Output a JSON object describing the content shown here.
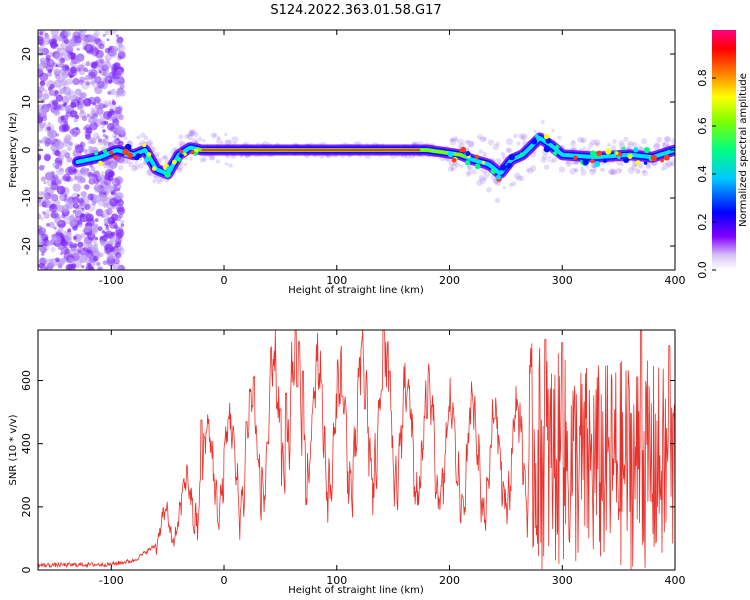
{
  "title": "S124.2022.363.01.58.G17",
  "chart_data": [
    {
      "type": "heatmap",
      "xlabel": "Height of straight line (km)",
      "ylabel": "Frequency (Hz)",
      "xlim": [
        -165,
        400
      ],
      "ylim": [
        -25,
        25
      ],
      "xticks": [
        -100,
        0,
        100,
        200,
        300,
        400
      ],
      "yticks": [
        -20,
        -10,
        0,
        10,
        20
      ],
      "track": [
        {
          "x": -130,
          "y": -2.5
        },
        {
          "x": -110,
          "y": -1.5
        },
        {
          "x": -95,
          "y": 0
        },
        {
          "x": -80,
          "y": -1
        },
        {
          "x": -70,
          "y": 0
        },
        {
          "x": -60,
          "y": -4
        },
        {
          "x": -50,
          "y": -5
        },
        {
          "x": -40,
          "y": -1
        },
        {
          "x": -30,
          "y": 0.5
        },
        {
          "x": -20,
          "y": 0
        },
        {
          "x": 0,
          "y": 0
        },
        {
          "x": 100,
          "y": 0
        },
        {
          "x": 180,
          "y": 0
        },
        {
          "x": 210,
          "y": -1
        },
        {
          "x": 220,
          "y": -2
        },
        {
          "x": 235,
          "y": -3
        },
        {
          "x": 245,
          "y": -5
        },
        {
          "x": 255,
          "y": -2
        },
        {
          "x": 265,
          "y": -1
        },
        {
          "x": 280,
          "y": 2.5
        },
        {
          "x": 290,
          "y": 1
        },
        {
          "x": 300,
          "y": -1
        },
        {
          "x": 330,
          "y": -1.5
        },
        {
          "x": 360,
          "y": -1
        },
        {
          "x": 380,
          "y": -1.5
        },
        {
          "x": 400,
          "y": 0
        }
      ],
      "colorbar": {
        "label": "Normalized spectral amplitude",
        "ticks": [
          "0.0",
          "0.2",
          "0.4",
          "0.6",
          "0.8"
        ],
        "tick_values": [
          0,
          0.2,
          0.4,
          0.6,
          0.8
        ],
        "range": [
          0,
          1
        ],
        "colors": [
          "#ffffff",
          "#c8a8f0",
          "#8000ff",
          "#0000ff",
          "#00ffff",
          "#00ff00",
          "#ffff00",
          "#ff8000",
          "#ff0000",
          "#ff0080"
        ]
      }
    },
    {
      "type": "line",
      "xlabel": "Height of straight line (km)",
      "ylabel": "SNR (10 * v/v)",
      "xlim": [
        -165,
        400
      ],
      "ylim": [
        0,
        760
      ],
      "xticks": [
        -100,
        0,
        100,
        200,
        300,
        400
      ],
      "yticks": [
        0,
        200,
        400,
        600
      ],
      "color": "#e8312a",
      "envelope": [
        {
          "x": -165,
          "y": 15
        },
        {
          "x": -100,
          "y": 18
        },
        {
          "x": -80,
          "y": 30
        },
        {
          "x": -60,
          "y": 80
        },
        {
          "x": -50,
          "y": 150
        },
        {
          "x": -40,
          "y": 180
        },
        {
          "x": -30,
          "y": 220
        },
        {
          "x": -20,
          "y": 300
        },
        {
          "x": -10,
          "y": 330
        },
        {
          "x": 0,
          "y": 330
        },
        {
          "x": 10,
          "y": 340
        },
        {
          "x": 20,
          "y": 360
        },
        {
          "x": 30,
          "y": 420
        },
        {
          "x": 40,
          "y": 440
        },
        {
          "x": 50,
          "y": 470
        },
        {
          "x": 60,
          "y": 500
        },
        {
          "x": 70,
          "y": 520
        },
        {
          "x": 80,
          "y": 470
        },
        {
          "x": 90,
          "y": 440
        },
        {
          "x": 100,
          "y": 430
        },
        {
          "x": 110,
          "y": 450
        },
        {
          "x": 120,
          "y": 470
        },
        {
          "x": 130,
          "y": 480
        },
        {
          "x": 140,
          "y": 500
        },
        {
          "x": 150,
          "y": 470
        },
        {
          "x": 160,
          "y": 420
        },
        {
          "x": 170,
          "y": 410
        },
        {
          "x": 180,
          "y": 400
        },
        {
          "x": 190,
          "y": 380
        },
        {
          "x": 200,
          "y": 360
        },
        {
          "x": 210,
          "y": 360
        },
        {
          "x": 220,
          "y": 370
        },
        {
          "x": 230,
          "y": 340
        },
        {
          "x": 240,
          "y": 350
        },
        {
          "x": 250,
          "y": 360
        },
        {
          "x": 260,
          "y": 360
        },
        {
          "x": 270,
          "y": 360
        },
        {
          "x": 280,
          "y": 360
        },
        {
          "x": 300,
          "y": 340
        },
        {
          "x": 320,
          "y": 330
        },
        {
          "x": 340,
          "y": 330
        },
        {
          "x": 360,
          "y": 340
        },
        {
          "x": 380,
          "y": 330
        },
        {
          "x": 400,
          "y": 320
        }
      ],
      "peaks": [
        {
          "x": -20,
          "y": 475
        },
        {
          "x": 20,
          "y": 470
        },
        {
          "x": 30,
          "y": 350
        },
        {
          "x": 50,
          "y": 510
        },
        {
          "x": 55,
          "y": 560
        },
        {
          "x": 65,
          "y": 580
        },
        {
          "x": 70,
          "y": 630
        },
        {
          "x": 105,
          "y": 550
        },
        {
          "x": 125,
          "y": 510
        },
        {
          "x": 140,
          "y": 570
        },
        {
          "x": 147,
          "y": 630
        },
        {
          "x": 180,
          "y": 480
        },
        {
          "x": 240,
          "y": 480
        },
        {
          "x": 285,
          "y": 730
        },
        {
          "x": 300,
          "y": 720
        },
        {
          "x": 370,
          "y": 760
        },
        {
          "x": 395,
          "y": 710
        }
      ]
    }
  ]
}
